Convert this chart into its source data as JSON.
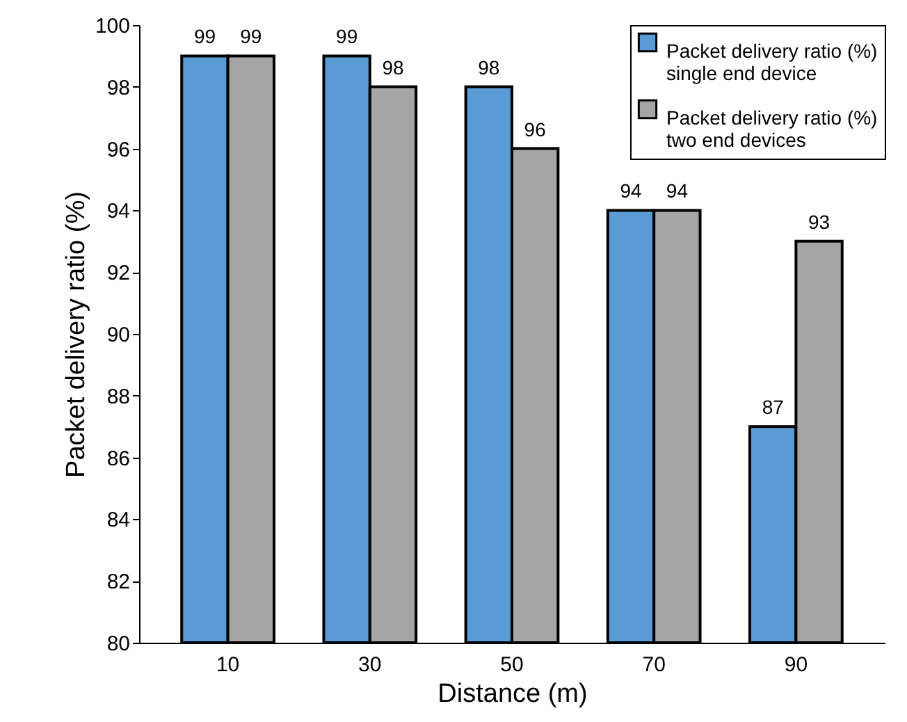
{
  "chart_data": {
    "type": "bar",
    "xlabel": "Distance (m)",
    "ylabel": "Packet delivery ratio (%)",
    "categories": [
      "10",
      "30",
      "50",
      "70",
      "90"
    ],
    "series": [
      {
        "name": "Packet delivery ratio (%) single end device",
        "color": "#5b9bd5",
        "values": [
          99,
          99,
          98,
          94,
          87
        ]
      },
      {
        "name": "Packet delivery ratio (%) two end devices",
        "color": "#a5a5a5",
        "values": [
          99,
          98,
          96,
          94,
          93
        ]
      }
    ],
    "ylim": [
      80,
      100
    ],
    "yticks": [
      80,
      82,
      84,
      86,
      88,
      90,
      92,
      94,
      96,
      98,
      100
    ],
    "data_labels": true,
    "legend": "top right"
  }
}
